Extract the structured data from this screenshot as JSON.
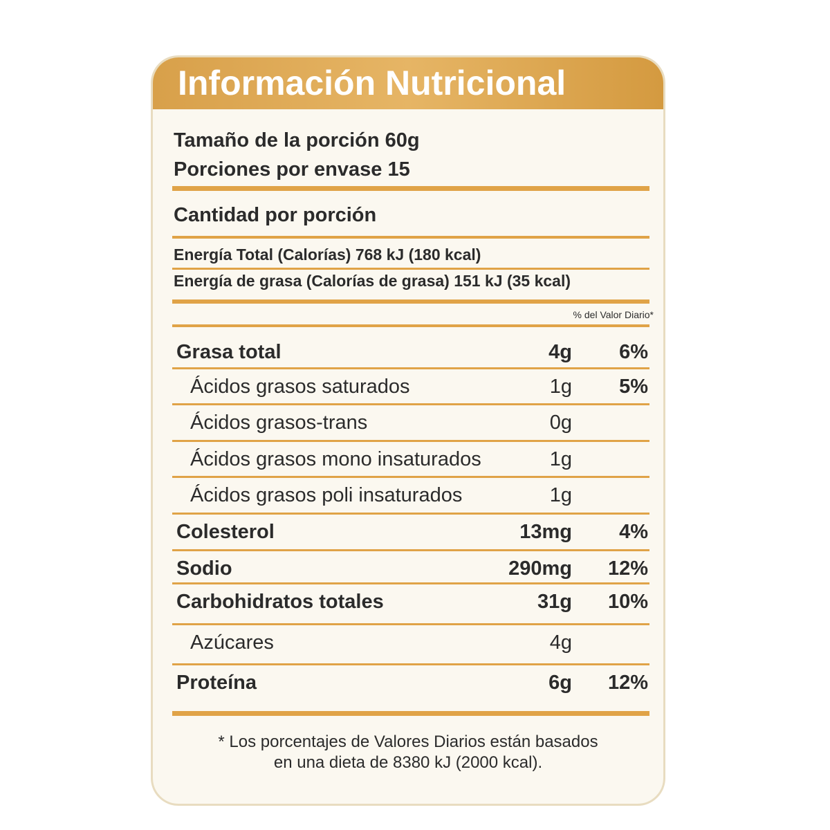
{
  "header": {
    "title": "Información Nutricional"
  },
  "serving": {
    "size": "Tamaño de la porción 60g",
    "per_container": "Porciones por envase 15"
  },
  "amount_heading": "Cantidad por porción",
  "energy": {
    "total": "Energía Total (Calorías) 768 kJ (180 kcal)",
    "fat": "Energía de grasa (Calorías de grasa) 151 kJ (35 kcal)"
  },
  "dv_heading": "% del Valor Diario*",
  "table": {
    "rows": [
      [
        "Grasa total",
        "4g",
        "6%"
      ],
      [
        "Ácidos grasos saturados",
        "1g",
        "5%"
      ],
      [
        "Ácidos grasos-trans",
        "0g"
      ],
      [
        "Ácidos grasos mono insaturados",
        "1g"
      ],
      [
        "Ácidos grasos poli insaturados",
        "1g"
      ],
      [
        "Colesterol",
        "13mg",
        "4%"
      ],
      [
        "Sodio",
        "290mg",
        "12%"
      ],
      [
        "Carbohidratos totales",
        "31g",
        "10%"
      ],
      [
        "Azúcares",
        "4g"
      ],
      [
        "Proteína",
        "6g",
        "12%"
      ]
    ]
  },
  "footnote": [
    "* Los porcentajes de Valores Diarios están basados",
    "en una dieta de 8380 kJ (2000 kcal)."
  ]
}
